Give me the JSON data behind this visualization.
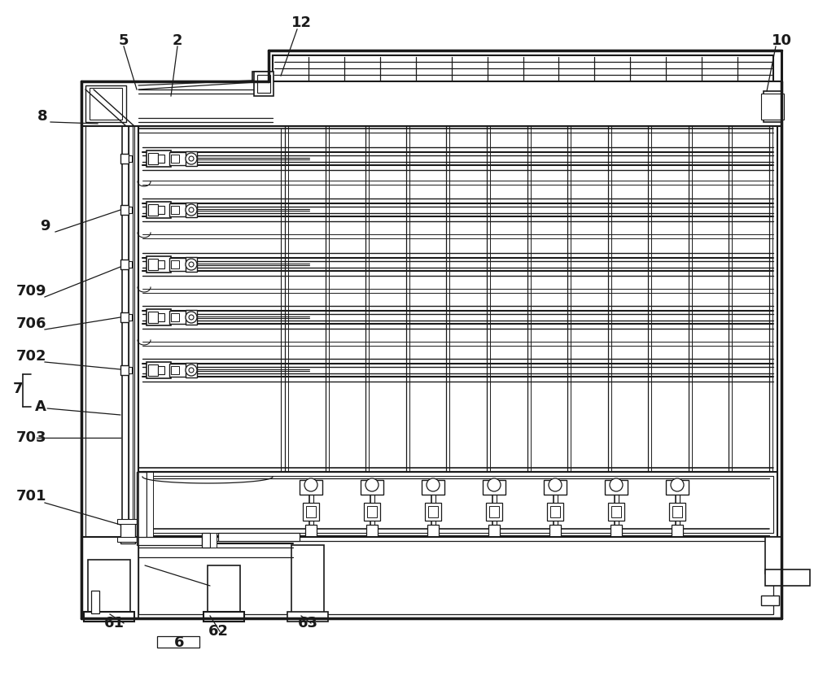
{
  "bg_color": "#ffffff",
  "lc": "#1a1a1a",
  "figsize": [
    10.0,
    8.42
  ],
  "dpi": 100,
  "labels": [
    [
      "5",
      152,
      50,
      13
    ],
    [
      "2",
      218,
      50,
      13
    ],
    [
      "12",
      370,
      28,
      13
    ],
    [
      "10",
      960,
      50,
      13
    ],
    [
      "8",
      52,
      143,
      13
    ],
    [
      "9",
      55,
      278,
      13
    ],
    [
      "709",
      38,
      358,
      13
    ],
    [
      "706",
      38,
      398,
      13
    ],
    [
      "702",
      38,
      438,
      13
    ],
    [
      "7",
      22,
      478,
      13
    ],
    [
      "A",
      50,
      500,
      13
    ],
    [
      "703",
      38,
      538,
      13
    ],
    [
      "701",
      38,
      610,
      13
    ],
    [
      "61",
      140,
      766,
      13
    ],
    [
      "62",
      268,
      776,
      13
    ],
    [
      "63",
      378,
      766,
      13
    ],
    [
      "6",
      220,
      790,
      13
    ]
  ],
  "leader_lines": [
    [
      152,
      57,
      168,
      110
    ],
    [
      218,
      57,
      210,
      118
    ],
    [
      365,
      36,
      345,
      93
    ],
    [
      953,
      57,
      942,
      112
    ],
    [
      62,
      150,
      120,
      152
    ],
    [
      68,
      285,
      148,
      258
    ],
    [
      55,
      365,
      148,
      328
    ],
    [
      55,
      405,
      148,
      390
    ],
    [
      55,
      445,
      148,
      454
    ],
    [
      45,
      538,
      148,
      538
    ],
    [
      55,
      618,
      148,
      645
    ],
    [
      152,
      766,
      135,
      755
    ],
    [
      270,
      776,
      258,
      757
    ],
    [
      382,
      766,
      370,
      757
    ]
  ]
}
